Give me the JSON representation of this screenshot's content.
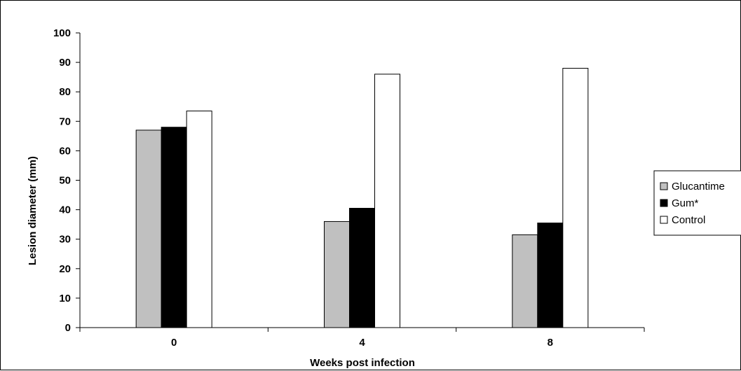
{
  "chart_data": {
    "type": "bar",
    "title": "",
    "xlabel": "Weeks post infection",
    "ylabel": "Lesion diameter (mm)",
    "categories": [
      "0",
      "4",
      "8"
    ],
    "ylim": [
      0,
      100
    ],
    "yticks": [
      "0",
      "10",
      "20",
      "30",
      "40",
      "50",
      "60",
      "70",
      "80",
      "90",
      "100"
    ],
    "grid": false,
    "legend_position": "right",
    "series": [
      {
        "name": "Glucantime",
        "values": [
          67,
          36,
          31.5
        ],
        "color": "#c0c0c0"
      },
      {
        "name": "Gum*",
        "values": [
          68,
          40.5,
          35.5
        ],
        "color": "#000000"
      },
      {
        "name": "Control",
        "values": [
          73.5,
          86,
          88
        ],
        "color": "#ffffff"
      }
    ]
  }
}
